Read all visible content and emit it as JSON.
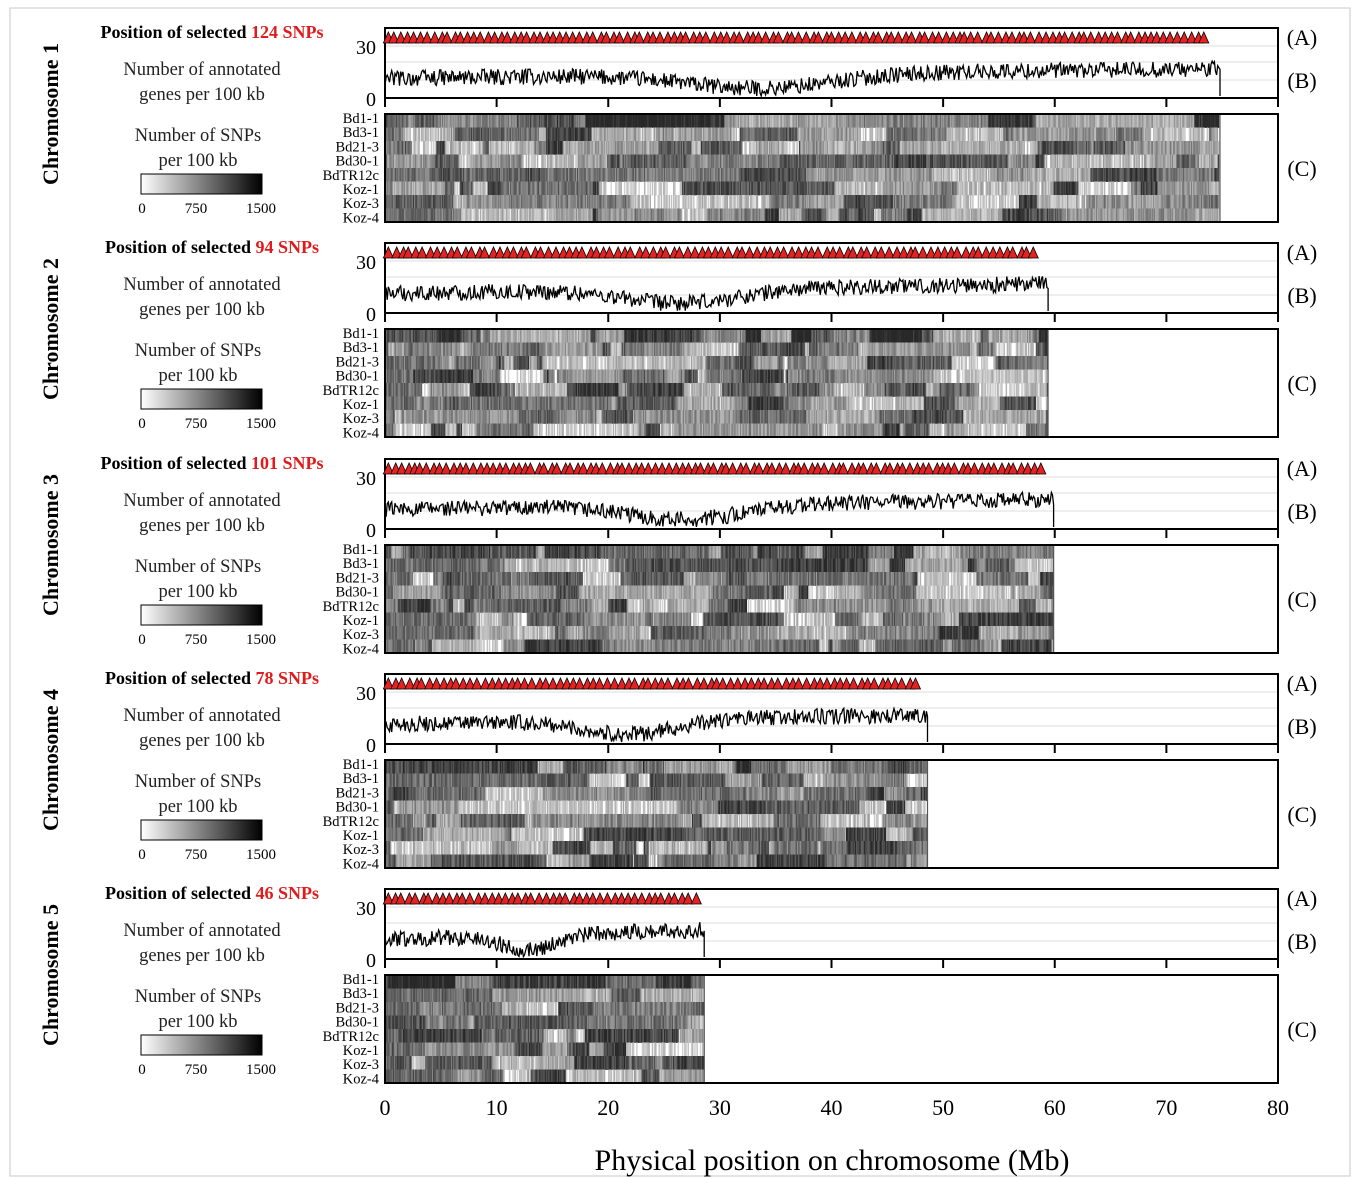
{
  "figure": {
    "x_axis_title": "Physical position on chromosome (Mb)",
    "x_ticks": [
      "0",
      "10",
      "20",
      "30",
      "40",
      "50",
      "60",
      "70",
      "80"
    ],
    "x_range_mb": [
      0,
      80
    ],
    "panel_tags": {
      "a": "(A)",
      "b": "(B)",
      "c": "(C)"
    },
    "position_prefix": "Position of selected",
    "gene_label_line1": "Number of annotated",
    "gene_label_line2": "genes per 100 kb",
    "gene_y_ticks": [
      "30",
      "0"
    ],
    "snp_label_line1": "Number of SNPs",
    "snp_label_line2": "per 100 kb",
    "colorbar_ticks": [
      "0",
      "750",
      "1500"
    ],
    "accessions": [
      "Bd1-1",
      "Bd3-1",
      "Bd21-3",
      "Bd30-1",
      "BdTR12c",
      "Koz-1",
      "Koz-3",
      "Koz-4"
    ],
    "colors": {
      "snp_marker": "#e52222",
      "count_text": "#e01b1b",
      "heat_low": "#ffffff",
      "heat_high": "#000000"
    }
  },
  "chromosomes": [
    {
      "label": "Chromosome 1",
      "snp_count_text": "124 SNPs",
      "length_mb": 74.8,
      "snp_count": 124
    },
    {
      "label": "Chromosome 2",
      "snp_count_text": "94 SNPs",
      "length_mb": 59.4,
      "snp_count": 94
    },
    {
      "label": "Chromosome 3",
      "snp_count_text": "101 SNPs",
      "length_mb": 59.9,
      "snp_count": 101
    },
    {
      "label": "Chromosome 4",
      "snp_count_text": "78 SNPs",
      "length_mb": 48.6,
      "snp_count": 78
    },
    {
      "label": "Chromosome 5",
      "snp_count_text": "46 SNPs",
      "length_mb": 28.6,
      "snp_count": 46
    }
  ],
  "chart_data": {
    "type": "heatmap",
    "description_panels": [
      "SNP positions (A)",
      "annotated genes per 100 kb (B)",
      "SNP density per accession (C)"
    ],
    "xlabel": "Physical position on chromosome (Mb)",
    "xlim": [
      0,
      80
    ],
    "gene_density_ylim": [
      0,
      30
    ],
    "snp_colorbar_range": [
      0,
      1500
    ],
    "series": [
      {
        "name": "Chromosome 1",
        "length_mb": 74.8,
        "selected_snps": 124
      },
      {
        "name": "Chromosome 2",
        "length_mb": 59.4,
        "selected_snps": 94
      },
      {
        "name": "Chromosome 3",
        "length_mb": 59.9,
        "selected_snps": 101
      },
      {
        "name": "Chromosome 4",
        "length_mb": 48.6,
        "selected_snps": 78
      },
      {
        "name": "Chromosome 5",
        "length_mb": 28.6,
        "selected_snps": 46
      }
    ],
    "rows": [
      "Bd1-1",
      "Bd3-1",
      "Bd21-3",
      "Bd30-1",
      "BdTR12c",
      "Koz-1",
      "Koz-3",
      "Koz-4"
    ]
  }
}
